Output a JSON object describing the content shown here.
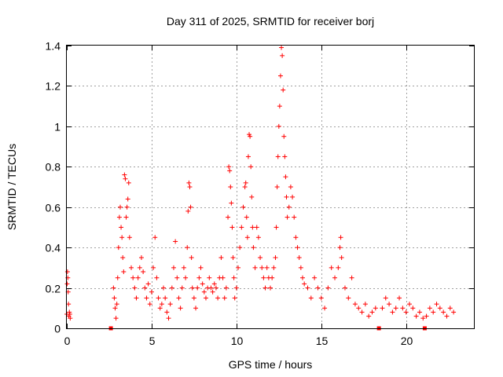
{
  "chart_data": {
    "type": "scatter",
    "title": "Day 311 of 2025, SRMTID for receiver borj",
    "xlabel": "GPS time / hours",
    "ylabel": "SRMTID / TECUs",
    "xlim": [
      0,
      24
    ],
    "ylim": [
      0,
      1.4
    ],
    "x_ticks": [
      0,
      5,
      10,
      15,
      20
    ],
    "x_tick_labels": [
      "0",
      "5",
      "10",
      "15",
      "20"
    ],
    "y_ticks": [
      0,
      0.2,
      0.4,
      0.6,
      0.8,
      1.0,
      1.2,
      1.4
    ],
    "y_tick_labels": [
      "0",
      "0.2",
      "0.4",
      "0.6",
      "0.8",
      "1",
      "1.2",
      "1.4"
    ],
    "grid": true,
    "marker": "plus",
    "color": "#ff0000",
    "gap_markers": [
      2.6,
      18.4,
      21.1
    ],
    "series": [
      {
        "name": "SRMTID",
        "points": [
          [
            0.0,
            0.07
          ],
          [
            0.02,
            0.22
          ],
          [
            0.04,
            0.28
          ],
          [
            0.06,
            0.25
          ],
          [
            0.08,
            0.18
          ],
          [
            0.1,
            0.12
          ],
          [
            0.12,
            0.06
          ],
          [
            0.15,
            0.08
          ],
          [
            0.18,
            0.07
          ],
          [
            0.2,
            0.05
          ],
          [
            2.6,
            0.0
          ],
          [
            2.75,
            0.2
          ],
          [
            2.8,
            0.15
          ],
          [
            2.85,
            0.1
          ],
          [
            2.9,
            0.05
          ],
          [
            2.95,
            0.12
          ],
          [
            3.0,
            0.25
          ],
          [
            3.05,
            0.4
          ],
          [
            3.1,
            0.55
          ],
          [
            3.15,
            0.6
          ],
          [
            3.2,
            0.5
          ],
          [
            3.25,
            0.45
          ],
          [
            3.3,
            0.35
          ],
          [
            3.35,
            0.28
          ],
          [
            3.4,
            0.76
          ],
          [
            3.45,
            0.74
          ],
          [
            3.5,
            0.55
          ],
          [
            3.55,
            0.6
          ],
          [
            3.6,
            0.64
          ],
          [
            3.65,
            0.72
          ],
          [
            3.7,
            0.45
          ],
          [
            3.8,
            0.3
          ],
          [
            3.9,
            0.25
          ],
          [
            4.0,
            0.2
          ],
          [
            4.1,
            0.15
          ],
          [
            4.2,
            0.25
          ],
          [
            4.3,
            0.3
          ],
          [
            4.4,
            0.35
          ],
          [
            4.5,
            0.28
          ],
          [
            4.6,
            0.2
          ],
          [
            4.7,
            0.15
          ],
          [
            4.8,
            0.22
          ],
          [
            4.9,
            0.12
          ],
          [
            5.0,
            0.18
          ],
          [
            5.1,
            0.3
          ],
          [
            5.2,
            0.45
          ],
          [
            5.3,
            0.25
          ],
          [
            5.4,
            0.15
          ],
          [
            5.5,
            0.1
          ],
          [
            5.6,
            0.12
          ],
          [
            5.7,
            0.2
          ],
          [
            5.8,
            0.15
          ],
          [
            5.9,
            0.08
          ],
          [
            6.0,
            0.05
          ],
          [
            6.1,
            0.12
          ],
          [
            6.2,
            0.2
          ],
          [
            6.3,
            0.3
          ],
          [
            6.4,
            0.43
          ],
          [
            6.5,
            0.25
          ],
          [
            6.6,
            0.15
          ],
          [
            6.7,
            0.1
          ],
          [
            6.8,
            0.2
          ],
          [
            6.9,
            0.3
          ],
          [
            7.0,
            0.25
          ],
          [
            7.1,
            0.4
          ],
          [
            7.15,
            0.58
          ],
          [
            7.2,
            0.72
          ],
          [
            7.25,
            0.7
          ],
          [
            7.3,
            0.6
          ],
          [
            7.35,
            0.35
          ],
          [
            7.4,
            0.2
          ],
          [
            7.5,
            0.15
          ],
          [
            7.6,
            0.1
          ],
          [
            7.7,
            0.2
          ],
          [
            7.8,
            0.25
          ],
          [
            7.9,
            0.3
          ],
          [
            8.0,
            0.22
          ],
          [
            8.1,
            0.18
          ],
          [
            8.2,
            0.15
          ],
          [
            8.3,
            0.2
          ],
          [
            8.4,
            0.25
          ],
          [
            8.5,
            0.2
          ],
          [
            8.6,
            0.18
          ],
          [
            8.7,
            0.22
          ],
          [
            8.8,
            0.2
          ],
          [
            8.9,
            0.15
          ],
          [
            9.0,
            0.25
          ],
          [
            9.1,
            0.35
          ],
          [
            9.2,
            0.25
          ],
          [
            9.3,
            0.15
          ],
          [
            9.4,
            0.2
          ],
          [
            9.5,
            0.55
          ],
          [
            9.55,
            0.8
          ],
          [
            9.6,
            0.78
          ],
          [
            9.65,
            0.7
          ],
          [
            9.7,
            0.62
          ],
          [
            9.75,
            0.5
          ],
          [
            9.8,
            0.35
          ],
          [
            9.85,
            0.25
          ],
          [
            9.9,
            0.15
          ],
          [
            10.0,
            0.2
          ],
          [
            10.1,
            0.3
          ],
          [
            10.2,
            0.4
          ],
          [
            10.3,
            0.5
          ],
          [
            10.4,
            0.6
          ],
          [
            10.5,
            0.7
          ],
          [
            10.55,
            0.72
          ],
          [
            10.6,
            0.55
          ],
          [
            10.65,
            0.45
          ],
          [
            10.7,
            0.85
          ],
          [
            10.75,
            0.96
          ],
          [
            10.8,
            0.95
          ],
          [
            10.85,
            0.8
          ],
          [
            10.9,
            0.65
          ],
          [
            10.95,
            0.5
          ],
          [
            11.0,
            0.4
          ],
          [
            11.1,
            0.3
          ],
          [
            11.2,
            0.5
          ],
          [
            11.3,
            0.45
          ],
          [
            11.4,
            0.35
          ],
          [
            11.5,
            0.3
          ],
          [
            11.6,
            0.25
          ],
          [
            11.7,
            0.2
          ],
          [
            11.8,
            0.3
          ],
          [
            11.9,
            0.25
          ],
          [
            12.0,
            0.2
          ],
          [
            12.1,
            0.25
          ],
          [
            12.2,
            0.3
          ],
          [
            12.3,
            0.35
          ],
          [
            12.35,
            0.5
          ],
          [
            12.4,
            0.7
          ],
          [
            12.45,
            0.85
          ],
          [
            12.5,
            1.0
          ],
          [
            12.55,
            1.1
          ],
          [
            12.6,
            1.25
          ],
          [
            12.65,
            1.39
          ],
          [
            12.7,
            1.35
          ],
          [
            12.75,
            1.18
          ],
          [
            12.8,
            0.95
          ],
          [
            12.85,
            0.85
          ],
          [
            12.9,
            0.75
          ],
          [
            12.95,
            0.65
          ],
          [
            13.0,
            0.55
          ],
          [
            13.1,
            0.6
          ],
          [
            13.2,
            0.7
          ],
          [
            13.3,
            0.65
          ],
          [
            13.4,
            0.55
          ],
          [
            13.5,
            0.45
          ],
          [
            13.6,
            0.4
          ],
          [
            13.7,
            0.35
          ],
          [
            13.8,
            0.3
          ],
          [
            13.9,
            0.25
          ],
          [
            14.0,
            0.22
          ],
          [
            14.2,
            0.2
          ],
          [
            14.4,
            0.15
          ],
          [
            14.6,
            0.25
          ],
          [
            14.8,
            0.2
          ],
          [
            15.0,
            0.15
          ],
          [
            15.2,
            0.1
          ],
          [
            15.4,
            0.2
          ],
          [
            15.6,
            0.3
          ],
          [
            15.8,
            0.25
          ],
          [
            16.0,
            0.3
          ],
          [
            16.1,
            0.4
          ],
          [
            16.15,
            0.45
          ],
          [
            16.2,
            0.35
          ],
          [
            16.4,
            0.2
          ],
          [
            16.6,
            0.15
          ],
          [
            16.8,
            0.25
          ],
          [
            17.0,
            0.12
          ],
          [
            17.2,
            0.1
          ],
          [
            17.4,
            0.08
          ],
          [
            17.6,
            0.12
          ],
          [
            17.8,
            0.06
          ],
          [
            18.0,
            0.08
          ],
          [
            18.2,
            0.1
          ],
          [
            18.4,
            0.0
          ],
          [
            18.6,
            0.1
          ],
          [
            18.8,
            0.15
          ],
          [
            19.0,
            0.12
          ],
          [
            19.2,
            0.08
          ],
          [
            19.4,
            0.1
          ],
          [
            19.6,
            0.15
          ],
          [
            19.8,
            0.1
          ],
          [
            20.0,
            0.08
          ],
          [
            20.2,
            0.12
          ],
          [
            20.4,
            0.1
          ],
          [
            20.6,
            0.06
          ],
          [
            20.8,
            0.08
          ],
          [
            21.0,
            0.05
          ],
          [
            21.1,
            0.0
          ],
          [
            21.2,
            0.06
          ],
          [
            21.4,
            0.1
          ],
          [
            21.6,
            0.08
          ],
          [
            21.8,
            0.12
          ],
          [
            22.0,
            0.1
          ],
          [
            22.2,
            0.08
          ],
          [
            22.4,
            0.06
          ],
          [
            22.6,
            0.1
          ],
          [
            22.8,
            0.08
          ]
        ]
      }
    ]
  }
}
